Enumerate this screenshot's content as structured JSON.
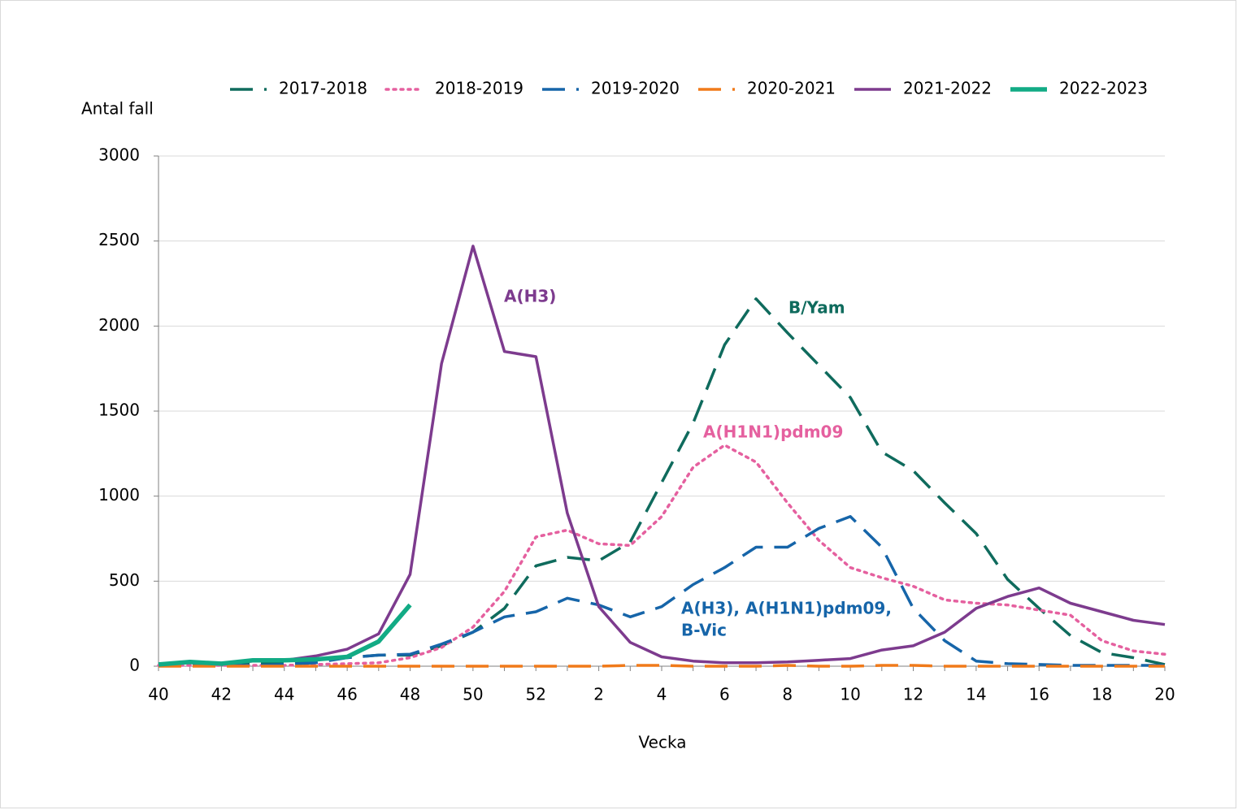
{
  "chart_data": {
    "type": "line",
    "y_label": "Antal fall",
    "x_label": "Vecka",
    "categories": [
      40,
      null,
      42,
      null,
      44,
      null,
      46,
      null,
      48,
      null,
      50,
      null,
      52,
      null,
      2,
      null,
      4,
      null,
      6,
      null,
      8,
      null,
      10,
      null,
      12,
      null,
      14,
      null,
      16,
      null,
      18,
      null,
      20
    ],
    "ylim": [
      0,
      3000
    ],
    "yticks": [
      0,
      500,
      1000,
      1500,
      2000,
      2500,
      3000
    ],
    "grid": true,
    "legend": "top",
    "series": [
      {
        "name": "2017-2018",
        "color": "#0f6b5d",
        "style": "dashed",
        "values": [
          10,
          15,
          15,
          20,
          25,
          35,
          50,
          65,
          65,
          120,
          200,
          340,
          590,
          640,
          620,
          730,
          1080,
          1430,
          1890,
          2160,
          1960,
          1770,
          1580,
          1260,
          1150,
          960,
          780,
          510,
          340,
          180,
          80,
          50,
          10
        ]
      },
      {
        "name": "2018-2019",
        "color": "#e5609f",
        "style": "dotted",
        "values": [
          5,
          5,
          5,
          5,
          5,
          10,
          15,
          20,
          50,
          110,
          230,
          440,
          760,
          800,
          720,
          710,
          880,
          1170,
          1300,
          1200,
          960,
          740,
          580,
          520,
          470,
          390,
          370,
          360,
          330,
          300,
          150,
          90,
          70
        ]
      },
      {
        "name": "2019-2020",
        "color": "#1665a9",
        "style": "dashed",
        "values": [
          5,
          5,
          5,
          5,
          10,
          20,
          50,
          65,
          70,
          130,
          200,
          290,
          320,
          400,
          360,
          290,
          350,
          480,
          580,
          700,
          700,
          810,
          880,
          700,
          340,
          150,
          30,
          15,
          10,
          5,
          5,
          5,
          5
        ]
      },
      {
        "name": "2020-2021",
        "color": "#f07a1a",
        "style": "dashed",
        "values": [
          0,
          0,
          0,
          0,
          0,
          0,
          0,
          0,
          0,
          0,
          0,
          0,
          0,
          0,
          0,
          5,
          5,
          0,
          0,
          0,
          5,
          0,
          0,
          5,
          5,
          0,
          0,
          0,
          0,
          0,
          0,
          0,
          0
        ]
      },
      {
        "name": "2021-2022",
        "color": "#7d3b8e",
        "style": "solid",
        "values": [
          10,
          20,
          15,
          30,
          35,
          60,
          100,
          190,
          540,
          1780,
          2470,
          1850,
          1820,
          900,
          350,
          140,
          55,
          30,
          20,
          20,
          25,
          35,
          45,
          95,
          120,
          200,
          340,
          410,
          460,
          370,
          320,
          270,
          245
        ]
      },
      {
        "name": "2022-2023",
        "color": "#12ab85",
        "style": "solid",
        "values": [
          10,
          25,
          15,
          35,
          35,
          40,
          55,
          145,
          360,
          null,
          null,
          null,
          null,
          null,
          null,
          null,
          null,
          null,
          null,
          null,
          null,
          null,
          null,
          null,
          null,
          null,
          null,
          null,
          null,
          null,
          null,
          null,
          null
        ]
      }
    ],
    "annotations": [
      {
        "text": "A(H3)",
        "color": "#7d3b8e"
      },
      {
        "text": "B/Yam",
        "color": "#0f6b5d"
      },
      {
        "text": "A(H1N1)pdm09",
        "color": "#e5609f"
      },
      {
        "text": "A(H3), A(H1N1)pdm09,",
        "color": "#1665a9"
      },
      {
        "text": "B-Vic",
        "color": "#1665a9"
      }
    ]
  }
}
